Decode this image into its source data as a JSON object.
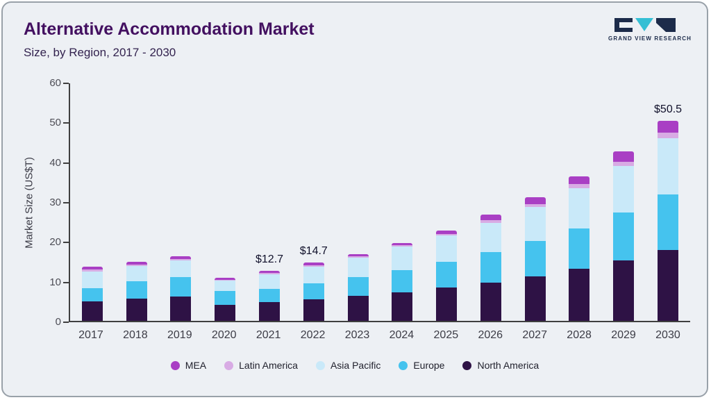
{
  "header": {
    "title": "Alternative Accommodation Market",
    "subtitle": "Size, by Region, 2017 - 2030"
  },
  "logo": {
    "brand": "GRAND VIEW RESEARCH"
  },
  "chart_data": {
    "type": "bar",
    "stacked": true,
    "title": "Alternative Accommodation Market Size, by Region, 2017 - 2030",
    "xlabel": "",
    "ylabel": "Market Size (US$T)",
    "ylim": [
      0,
      60
    ],
    "yticks": [
      0,
      10,
      20,
      30,
      40,
      50,
      60
    ],
    "grid": false,
    "legend_position": "bottom",
    "categories": [
      "2017",
      "2018",
      "2019",
      "2020",
      "2021",
      "2022",
      "2023",
      "2024",
      "2025",
      "2026",
      "2027",
      "2028",
      "2029",
      "2030"
    ],
    "series": [
      {
        "name": "North America",
        "color": "#2e1245",
        "values": [
          5.0,
          5.6,
          6.1,
          4.0,
          4.7,
          5.4,
          6.3,
          7.2,
          8.4,
          9.7,
          11.2,
          13.1,
          15.3,
          17.9
        ]
      },
      {
        "name": "Europe",
        "color": "#45c3ee",
        "values": [
          3.2,
          4.4,
          4.9,
          3.5,
          3.4,
          4.1,
          4.8,
          5.6,
          6.5,
          7.6,
          8.9,
          10.3,
          12.0,
          14.1
        ]
      },
      {
        "name": "Asia Pacific",
        "color": "#c9e9f9",
        "values": [
          4.3,
          3.8,
          4.3,
          2.6,
          3.6,
          4.2,
          4.8,
          5.9,
          6.6,
          7.5,
          8.6,
          10.2,
          11.8,
          14.2
        ]
      },
      {
        "name": "Latin America",
        "color": "#d8abe4",
        "values": [
          0.5,
          0.5,
          0.4,
          0.3,
          0.4,
          0.4,
          0.4,
          0.4,
          0.5,
          0.7,
          0.8,
          0.9,
          1.1,
          1.4
        ]
      },
      {
        "name": "MEA",
        "color": "#a93fc4",
        "values": [
          0.7,
          0.7,
          0.6,
          0.5,
          0.6,
          0.6,
          0.6,
          0.6,
          0.9,
          1.3,
          1.8,
          2.0,
          2.6,
          2.9
        ]
      }
    ],
    "totals": [
      13.7,
      15.0,
      16.3,
      10.9,
      12.7,
      14.7,
      16.9,
      19.7,
      22.9,
      26.8,
      31.3,
      36.5,
      42.8,
      50.5
    ],
    "annotations": [
      {
        "category": "2021",
        "text": "$12.7"
      },
      {
        "category": "2022",
        "text": "$14.7"
      },
      {
        "category": "2030",
        "text": "$50.5"
      }
    ],
    "legend": [
      "MEA",
      "Latin America",
      "Asia Pacific",
      "Europe",
      "North America"
    ]
  }
}
